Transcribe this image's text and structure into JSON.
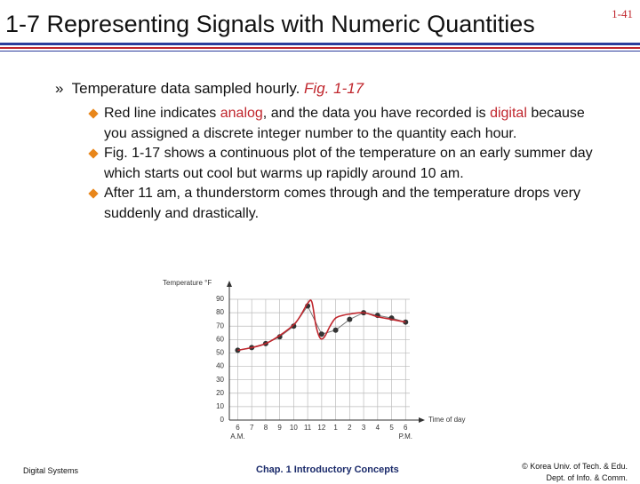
{
  "header": {
    "title": "1-7 Representing Signals with Numeric Quantities",
    "page": "1-41"
  },
  "body": {
    "marker": "»",
    "text": "Temperature data sampled hourly. ",
    "fig_ref": "Fig. 1-17",
    "bullets": [
      {
        "runs": [
          {
            "text": "Red line indicates "
          },
          {
            "text": "analog",
            "color": "#c0262d"
          },
          {
            "text": ", and the data you have recorded is "
          },
          {
            "text": "digital",
            "color": "#c0262d"
          },
          {
            "text": " because you assigned a discrete integer number to the quantity each hour."
          }
        ]
      },
      {
        "runs": [
          {
            "text": "Fig. 1-17 shows a continuous plot of the temperature on an early summer day which starts out cool but warms up rapidly around 10 am."
          }
        ]
      },
      {
        "runs": [
          {
            "text": "After 11 am, a thunderstorm comes through and the temperature drops very suddenly and drastically."
          }
        ]
      }
    ]
  },
  "chart_data": {
    "type": "line",
    "y_label": "Temperature °F",
    "x_label": "Time of day",
    "annotations": [
      {
        "x": 6,
        "text": "A.M."
      },
      {
        "x": 18,
        "text": "P.M."
      }
    ],
    "xlim": [
      5.4,
      18.3
    ],
    "ylim": [
      0,
      90
    ],
    "grid": true,
    "xticks": [
      6,
      7,
      8,
      9,
      10,
      11,
      12,
      {
        "value": 13,
        "label": "1"
      },
      {
        "value": 14,
        "label": "2"
      },
      {
        "value": 15,
        "label": "3"
      },
      {
        "value": 16,
        "label": "4"
      },
      {
        "value": 17,
        "label": "5"
      },
      {
        "value": 18,
        "label": "6"
      }
    ],
    "yticks": [
      0,
      10,
      20,
      30,
      40,
      50,
      60,
      70,
      80,
      90
    ],
    "series": [
      {
        "color": "#333333",
        "line_color": "#777777",
        "markers": true,
        "x": [
          6,
          7,
          8,
          9,
          10,
          11,
          12,
          13,
          14,
          15,
          16,
          17,
          18
        ],
        "values": [
          52,
          54,
          57,
          62,
          70,
          85,
          64,
          67,
          75,
          80,
          78,
          76,
          73
        ]
      },
      {
        "color": "#c0262d",
        "markers": false,
        "x": [
          6,
          7,
          8,
          9,
          10,
          10.5,
          11,
          11.3,
          11.6,
          11.9,
          12.2,
          12.6,
          13,
          13.5,
          14,
          15,
          16,
          17,
          18
        ],
        "values": [
          52,
          54,
          57,
          63,
          71,
          78,
          87,
          88,
          70,
          61,
          62,
          70,
          76,
          78,
          79,
          80,
          77,
          75,
          73
        ]
      }
    ]
  },
  "footer": {
    "left": "Digital Systems",
    "center": "Chap. 1  Introductory Concepts",
    "right": [
      "© Korea Univ. of Tech. & Edu.",
      "Dept. of Info. & Comm."
    ]
  }
}
